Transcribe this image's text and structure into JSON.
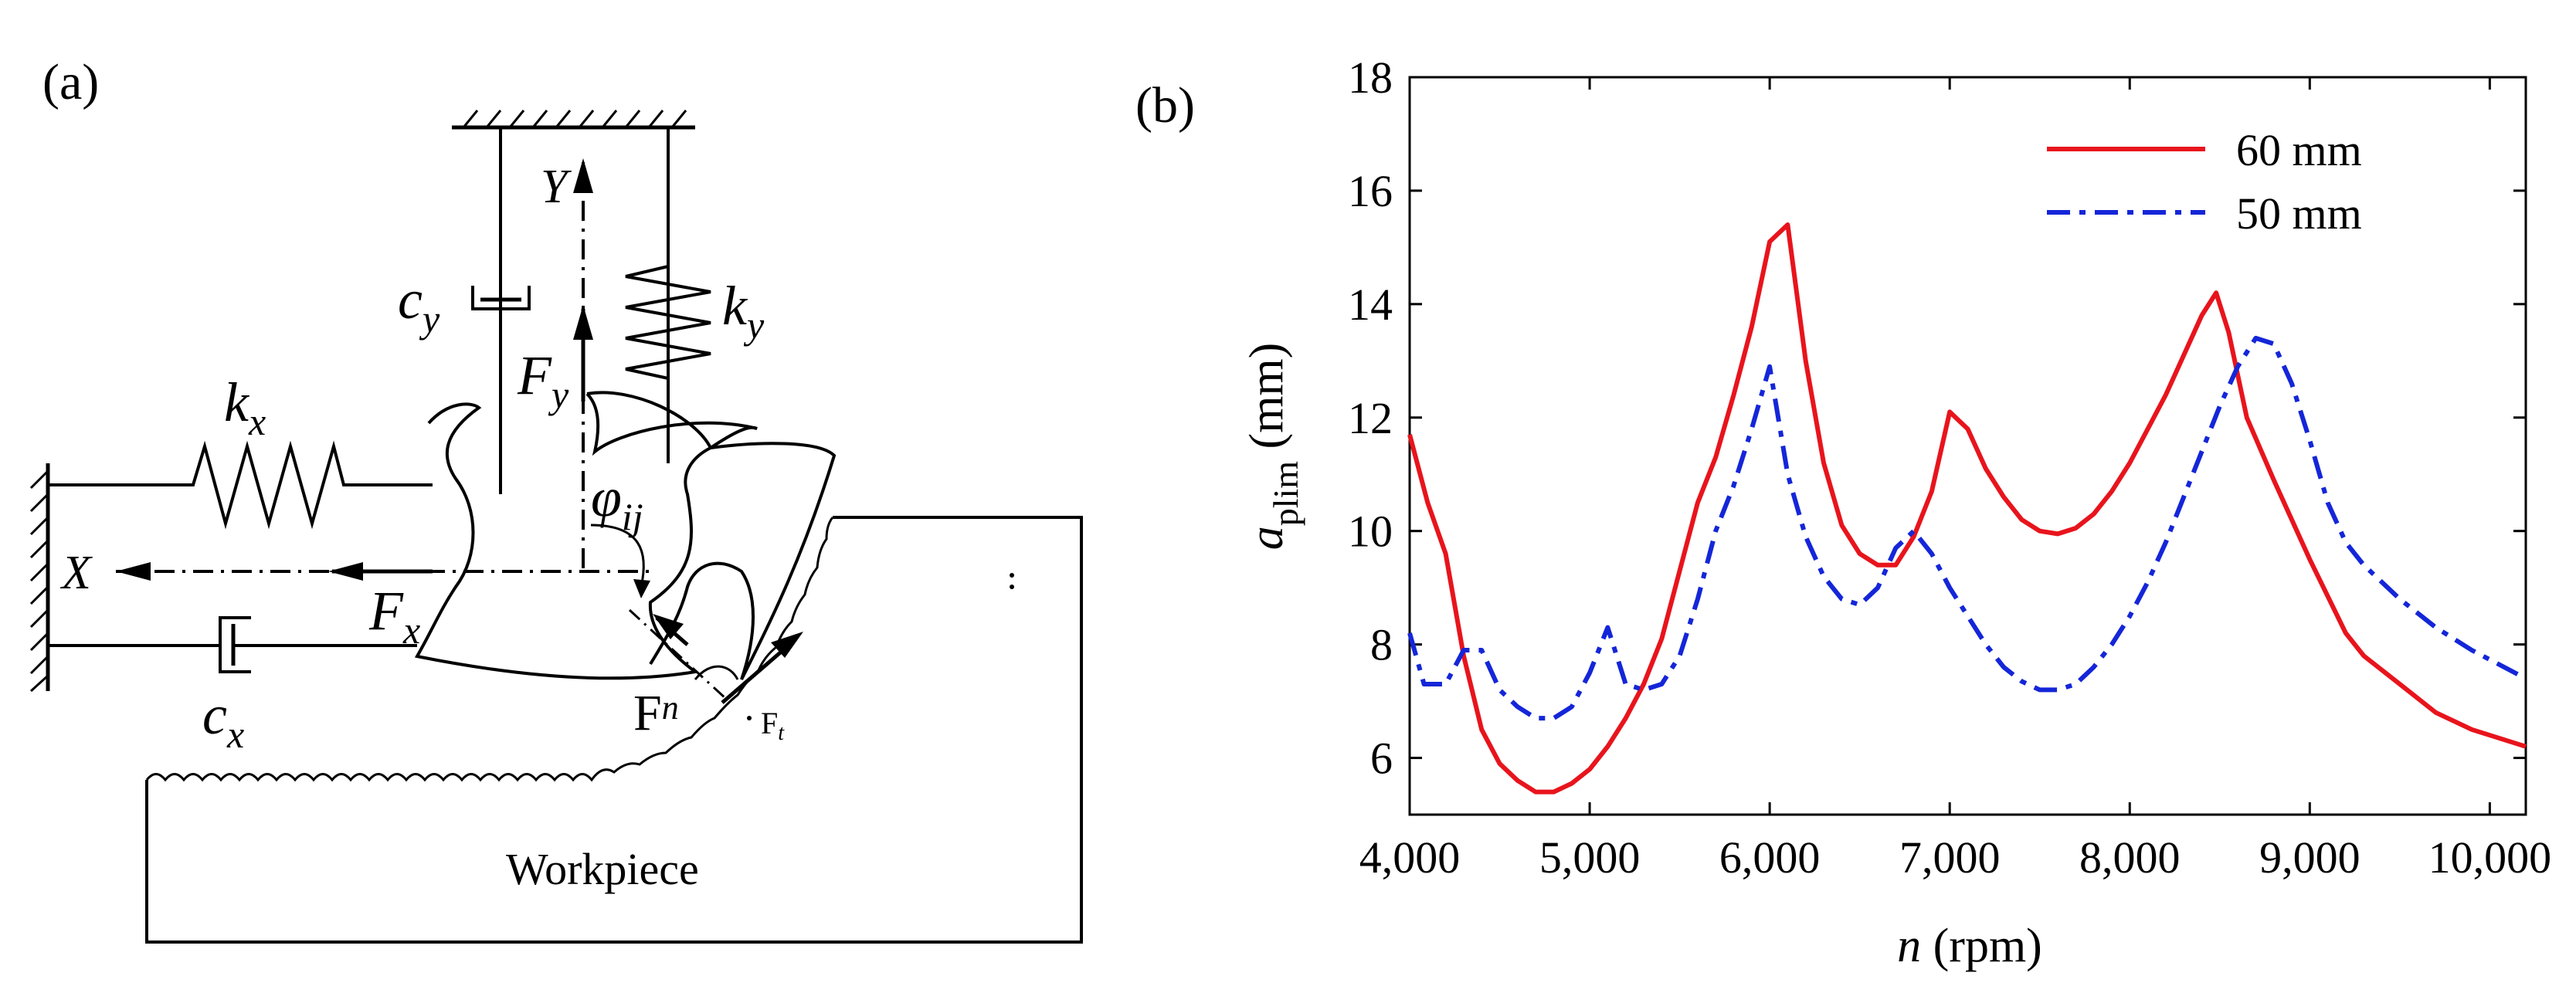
{
  "panel_a": {
    "label": "(a)",
    "axis_y": "Y",
    "axis_x": "X",
    "spring_y": "k",
    "spring_y_sub": "y",
    "damper_y": "c",
    "damper_y_sub": "y",
    "spring_x": "k",
    "spring_x_sub": "x",
    "damper_x": "c",
    "damper_x_sub": "x",
    "force_y": "F",
    "force_y_sub": "y",
    "force_x": "F",
    "force_x_sub": "x",
    "angle": "φ",
    "angle_sub": "ij",
    "force_n": "F",
    "force_n_sub": "n",
    "force_t": "F",
    "force_t_sub": "t",
    "workpiece": "Workpiece"
  },
  "chart_data": {
    "type": "line",
    "panel_label": "(b)",
    "title": "",
    "ylabel_main": "a",
    "ylabel_sub": "plim",
    "ylabel_unit": "(mm)",
    "xlabel_var": "n",
    "xlabel_unit": "(rpm)",
    "xlim": [
      4000,
      10200
    ],
    "ylim": [
      5,
      18
    ],
    "xticks": [
      4000,
      5000,
      6000,
      7000,
      8000,
      9000,
      10000
    ],
    "xtick_labels": [
      "4,000",
      "5,000",
      "6,000",
      "7,000",
      "8,000",
      "9,000",
      "10,000"
    ],
    "yticks": [
      6,
      8,
      10,
      12,
      14,
      16,
      18
    ],
    "ytick_labels": [
      "6",
      "8",
      "10",
      "12",
      "14",
      "16",
      "18"
    ],
    "grid": false,
    "legend_position": "top-right",
    "series": [
      {
        "name": "60 mm",
        "color": "#e8141c",
        "style": "solid",
        "points": [
          [
            4000,
            11.7
          ],
          [
            4100,
            10.5
          ],
          [
            4200,
            9.6
          ],
          [
            4300,
            7.8
          ],
          [
            4400,
            6.5
          ],
          [
            4500,
            5.9
          ],
          [
            4600,
            5.6
          ],
          [
            4700,
            5.4
          ],
          [
            4800,
            5.4
          ],
          [
            4900,
            5.55
          ],
          [
            5000,
            5.8
          ],
          [
            5100,
            6.2
          ],
          [
            5200,
            6.7
          ],
          [
            5300,
            7.3
          ],
          [
            5400,
            8.1
          ],
          [
            5500,
            9.3
          ],
          [
            5600,
            10.5
          ],
          [
            5700,
            11.3
          ],
          [
            5800,
            12.4
          ],
          [
            5900,
            13.6
          ],
          [
            6000,
            15.1
          ],
          [
            6100,
            15.4
          ],
          [
            6200,
            13.0
          ],
          [
            6300,
            11.2
          ],
          [
            6400,
            10.1
          ],
          [
            6500,
            9.6
          ],
          [
            6600,
            9.4
          ],
          [
            6700,
            9.4
          ],
          [
            6800,
            9.9
          ],
          [
            6900,
            10.7
          ],
          [
            7000,
            12.1
          ],
          [
            7100,
            11.8
          ],
          [
            7200,
            11.1
          ],
          [
            7300,
            10.6
          ],
          [
            7400,
            10.2
          ],
          [
            7500,
            10.0
          ],
          [
            7600,
            9.95
          ],
          [
            7700,
            10.05
          ],
          [
            7800,
            10.3
          ],
          [
            7900,
            10.7
          ],
          [
            8000,
            11.2
          ],
          [
            8100,
            11.8
          ],
          [
            8200,
            12.4
          ],
          [
            8300,
            13.1
          ],
          [
            8400,
            13.8
          ],
          [
            8480,
            14.2
          ],
          [
            8550,
            13.5
          ],
          [
            8650,
            12.0
          ],
          [
            8800,
            10.9
          ],
          [
            9000,
            9.5
          ],
          [
            9200,
            8.2
          ],
          [
            9300,
            7.8
          ],
          [
            9500,
            7.3
          ],
          [
            9700,
            6.8
          ],
          [
            9900,
            6.5
          ],
          [
            10200,
            6.2
          ]
        ]
      },
      {
        "name": "50 mm",
        "color": "#1426d8",
        "style": "dashdot",
        "points": [
          [
            4000,
            8.2
          ],
          [
            4080,
            7.3
          ],
          [
            4200,
            7.3
          ],
          [
            4300,
            7.9
          ],
          [
            4400,
            7.9
          ],
          [
            4500,
            7.2
          ],
          [
            4600,
            6.9
          ],
          [
            4700,
            6.7
          ],
          [
            4800,
            6.7
          ],
          [
            4900,
            6.9
          ],
          [
            5000,
            7.5
          ],
          [
            5100,
            8.3
          ],
          [
            5200,
            7.3
          ],
          [
            5300,
            7.2
          ],
          [
            5400,
            7.3
          ],
          [
            5500,
            7.8
          ],
          [
            5600,
            8.8
          ],
          [
            5700,
            10.0
          ],
          [
            5800,
            10.8
          ],
          [
            5900,
            11.8
          ],
          [
            6000,
            12.9
          ],
          [
            6100,
            11.0
          ],
          [
            6200,
            9.9
          ],
          [
            6300,
            9.2
          ],
          [
            6400,
            8.8
          ],
          [
            6500,
            8.7
          ],
          [
            6600,
            9.0
          ],
          [
            6700,
            9.7
          ],
          [
            6800,
            10.0
          ],
          [
            6900,
            9.6
          ],
          [
            7000,
            9.0
          ],
          [
            7100,
            8.5
          ],
          [
            7200,
            8.0
          ],
          [
            7300,
            7.6
          ],
          [
            7400,
            7.35
          ],
          [
            7500,
            7.2
          ],
          [
            7600,
            7.2
          ],
          [
            7700,
            7.3
          ],
          [
            7800,
            7.6
          ],
          [
            7900,
            8.0
          ],
          [
            8000,
            8.5
          ],
          [
            8100,
            9.1
          ],
          [
            8200,
            9.8
          ],
          [
            8300,
            10.6
          ],
          [
            8400,
            11.4
          ],
          [
            8500,
            12.2
          ],
          [
            8600,
            12.9
          ],
          [
            8700,
            13.4
          ],
          [
            8800,
            13.3
          ],
          [
            8900,
            12.6
          ],
          [
            9000,
            11.6
          ],
          [
            9100,
            10.5
          ],
          [
            9200,
            9.8
          ],
          [
            9300,
            9.4
          ],
          [
            9500,
            8.8
          ],
          [
            9700,
            8.3
          ],
          [
            9900,
            7.9
          ],
          [
            10200,
            7.4
          ]
        ]
      }
    ]
  }
}
